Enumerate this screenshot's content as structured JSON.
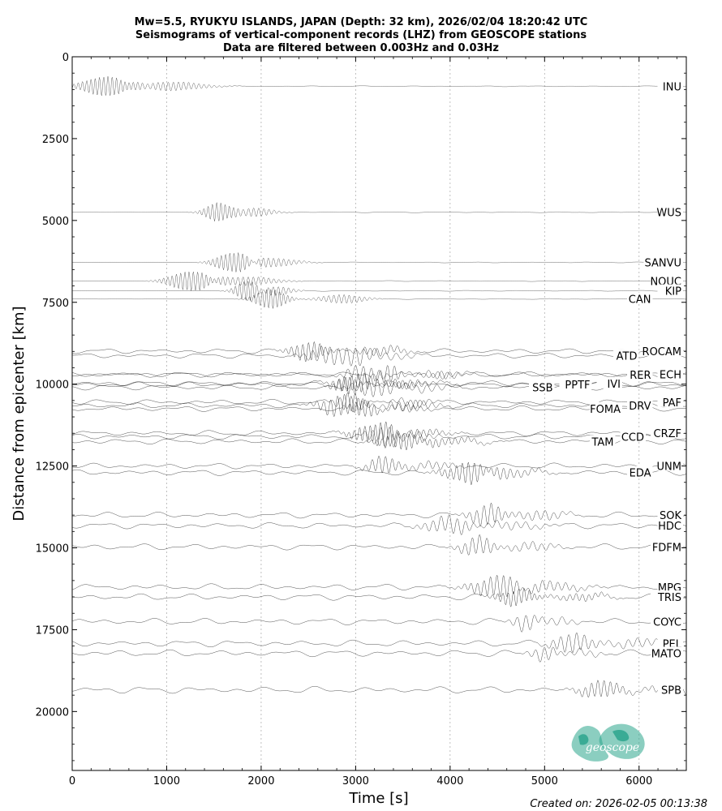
{
  "chart_data": {
    "type": "line",
    "title_lines": [
      "Mw=5.5, RYUKYU ISLANDS, JAPAN (Depth: 32 km), 2026/02/04 18:20:42 UTC",
      "Seismograms of vertical-component records (LHZ) from GEOSCOPE stations",
      "Data are filtered between 0.003Hz and 0.03Hz"
    ],
    "xlabel": "Time [s]",
    "ylabel": "Distance from epicenter [km]",
    "xlim": [
      0,
      6500
    ],
    "ylim": [
      21800,
      0
    ],
    "y_inverted": true,
    "xticks": [
      0,
      1000,
      2000,
      3000,
      4000,
      5000,
      6000
    ],
    "yticks": [
      0,
      2500,
      5000,
      7500,
      10000,
      12500,
      15000,
      17500,
      20000
    ],
    "vertical_grid": "dotted",
    "stations": [
      {
        "name": "INU",
        "distance": 900,
        "arrival": 350
      },
      {
        "name": "WUS",
        "distance": 4750,
        "arrival": 1550
      },
      {
        "name": "SANVU",
        "distance": 6280,
        "arrival": 1700
      },
      {
        "name": "NOUC",
        "distance": 6850,
        "arrival": 1250
      },
      {
        "name": "KIP",
        "distance": 7150,
        "arrival": 1850
      },
      {
        "name": "CAN",
        "distance": 7400,
        "arrival": 2100
      },
      {
        "name": "ROCAM",
        "distance": 8990,
        "arrival": 2500
      },
      {
        "name": "ATD",
        "distance": 9130,
        "arrival": 2800
      },
      {
        "name": "ECH",
        "distance": 9700,
        "arrival": 3100
      },
      {
        "name": "RER",
        "distance": 9710,
        "arrival": 3350
      },
      {
        "name": "IVI",
        "distance": 9980,
        "arrival": 3000
      },
      {
        "name": "PPTF",
        "distance": 10010,
        "arrival": 2900
      },
      {
        "name": "SSB",
        "distance": 10100,
        "arrival": 3200
      },
      {
        "name": "PAF",
        "distance": 10550,
        "arrival": 2950
      },
      {
        "name": "DRV",
        "distance": 10650,
        "arrival": 2850
      },
      {
        "name": "FOMA",
        "distance": 10750,
        "arrival": 3100
      },
      {
        "name": "CRZF",
        "distance": 11500,
        "arrival": 3200
      },
      {
        "name": "CCD",
        "distance": 11600,
        "arrival": 3300
      },
      {
        "name": "TAM",
        "distance": 11750,
        "arrival": 3500
      },
      {
        "name": "UNM",
        "distance": 12500,
        "arrival": 3300
      },
      {
        "name": "EDA",
        "distance": 12700,
        "arrival": 4200
      },
      {
        "name": "SOK",
        "distance": 14000,
        "arrival": 4400
      },
      {
        "name": "HDC",
        "distance": 14320,
        "arrival": 4000
      },
      {
        "name": "FDFM",
        "distance": 14970,
        "arrival": 4300
      },
      {
        "name": "MPG",
        "distance": 16200,
        "arrival": 4500
      },
      {
        "name": "TRIS",
        "distance": 16500,
        "arrival": 4700
      },
      {
        "name": "COYC",
        "distance": 17250,
        "arrival": 4800
      },
      {
        "name": "PEL",
        "distance": 17920,
        "arrival": 5300
      },
      {
        "name": "MATO",
        "distance": 18220,
        "arrival": 5000
      },
      {
        "name": "SPB",
        "distance": 19340,
        "arrival": 5600
      }
    ]
  },
  "logo": {
    "text": "geoscope",
    "color": "#2ca58d"
  },
  "footer": {
    "created": "Created on: 2026-02-05 00:13:38"
  }
}
